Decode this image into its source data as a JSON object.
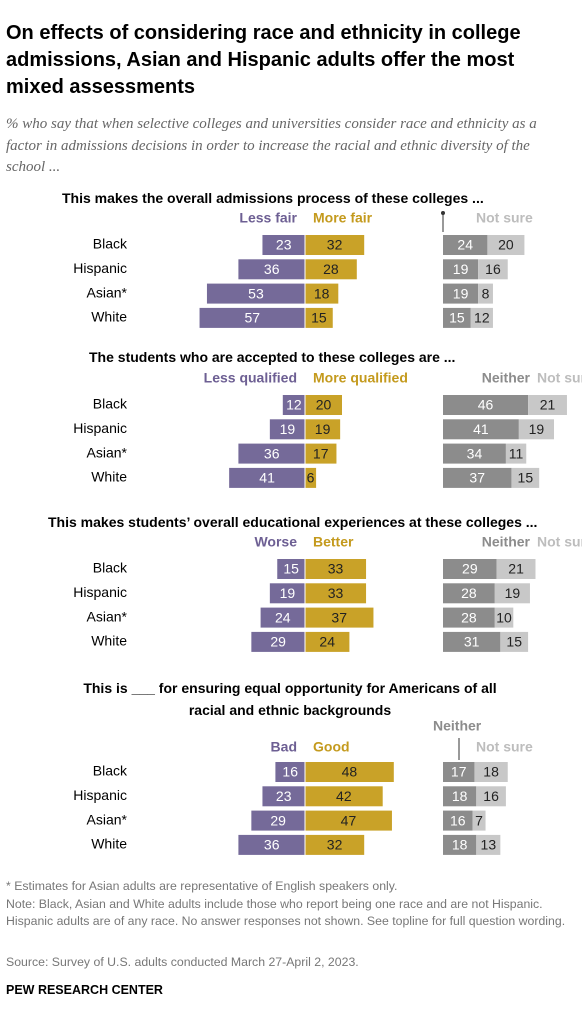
{
  "header": {
    "title": "On effects of considering race and ethnicity in college admissions, Asian and Hispanic adults offer the most mixed assessments",
    "subtitle": "% who say that when selective colleges and universities consider race and ethnicity as a factor in admissions decisions in order to increase the racial and ethnic diversity of the school ..."
  },
  "chart_data": [
    {
      "type": "bar",
      "title": "This makes the overall admissions process of these colleges ...",
      "categories": [
        "Black",
        "Hispanic",
        "Asian*",
        "White"
      ],
      "series": [
        {
          "name": "Less fair",
          "color": "#756a99",
          "values": [
            23,
            36,
            53,
            57
          ]
        },
        {
          "name": "More fair",
          "color": "#c9a228",
          "values": [
            32,
            28,
            18,
            15
          ]
        },
        {
          "name": null,
          "color": "#8c8c8c",
          "values": [
            24,
            19,
            19,
            15
          ]
        },
        {
          "name": "Not sure",
          "color": "#c8c8c8",
          "values": [
            20,
            16,
            8,
            12
          ]
        }
      ]
    },
    {
      "type": "bar",
      "title": "The students who are accepted to these colleges are ...",
      "categories": [
        "Black",
        "Hispanic",
        "Asian*",
        "White"
      ],
      "series": [
        {
          "name": "Less qualified",
          "color": "#756a99",
          "values": [
            12,
            19,
            36,
            41
          ]
        },
        {
          "name": "More qualified",
          "color": "#c9a228",
          "values": [
            20,
            19,
            17,
            6
          ]
        },
        {
          "name": "Neither",
          "color": "#8c8c8c",
          "values": [
            46,
            41,
            34,
            37
          ]
        },
        {
          "name": "Not sure",
          "color": "#c8c8c8",
          "values": [
            21,
            19,
            11,
            15
          ]
        }
      ]
    },
    {
      "type": "bar",
      "title": "This makes students’ overall educational experiences at these colleges ...",
      "categories": [
        "Black",
        "Hispanic",
        "Asian*",
        "White"
      ],
      "series": [
        {
          "name": "Worse",
          "color": "#756a99",
          "values": [
            15,
            19,
            24,
            29
          ]
        },
        {
          "name": "Better",
          "color": "#c9a228",
          "values": [
            33,
            33,
            37,
            24
          ]
        },
        {
          "name": "Neither",
          "color": "#8c8c8c",
          "values": [
            29,
            28,
            28,
            31
          ]
        },
        {
          "name": "Not sure",
          "color": "#c8c8c8",
          "values": [
            21,
            19,
            10,
            15
          ]
        }
      ]
    },
    {
      "type": "bar",
      "title": "This is ___ for ensuring equal opportunity for Americans of all racial and ethnic backgrounds",
      "categories": [
        "Black",
        "Hispanic",
        "Asian*",
        "White"
      ],
      "series": [
        {
          "name": "Bad",
          "color": "#756a99",
          "values": [
            16,
            23,
            29,
            36
          ]
        },
        {
          "name": "Good",
          "color": "#c9a228",
          "values": [
            48,
            42,
            47,
            32
          ]
        },
        {
          "name": "Neither",
          "color": "#8c8c8c",
          "values": [
            17,
            18,
            16,
            18
          ]
        },
        {
          "name": "Not sure",
          "color": "#c8c8c8",
          "values": [
            18,
            16,
            7,
            13
          ]
        }
      ]
    }
  ],
  "footer": {
    "footnote": "* Estimates for Asian adults are representative of English speakers only.",
    "note": "Note: Black, Asian and White adults include those who report being one race and are not Hispanic. Hispanic adults are of any race. No answer responses not shown. See topline for full question wording.",
    "source": "Source: Survey of U.S. adults conducted March 27-April 2, 2023.",
    "brand": "PEW RESEARCH CENTER"
  }
}
